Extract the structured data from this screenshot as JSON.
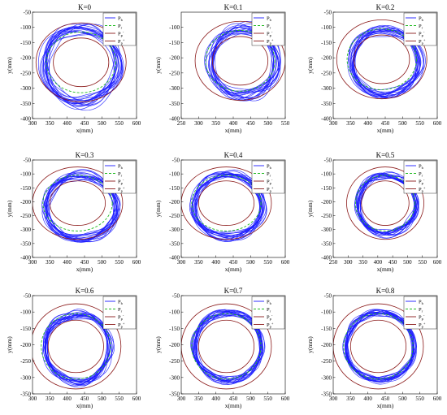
{
  "colors": {
    "measured": "#1a1aff",
    "reference": "#22bb22",
    "boundary": "#8b1a1a"
  },
  "chart_data": [
    {
      "type": "line",
      "title": "K=0",
      "xlabel": "x(mm)",
      "ylabel": "y(mm)",
      "xlim": [
        300,
        600
      ],
      "ylim": [
        -400,
        -50
      ],
      "xticks": [
        300,
        350,
        400,
        450,
        500,
        550,
        600
      ],
      "yticks": [
        -50,
        -100,
        -150,
        -200,
        -250,
        -300,
        -350,
        -400
      ],
      "legend": [
        "P_b",
        "P_r",
        "P_p^-",
        "P_p^+"
      ],
      "legend_loc": "top-right",
      "series": [
        {
          "name": "P_b",
          "shape": "ring",
          "center": [
            440,
            -225
          ],
          "radius_x": [
            85,
            120
          ],
          "radius_y": [
            100,
            140
          ]
        },
        {
          "name": "P_r",
          "shape": "circle",
          "center": [
            440,
            -215
          ],
          "radius": 100
        },
        {
          "name": "P_p^-",
          "shape": "circle",
          "center": [
            440,
            -215
          ],
          "radius": 80
        },
        {
          "name": "P_p^+",
          "shape": "circle",
          "center": [
            440,
            -215
          ],
          "radius": 130
        }
      ]
    },
    {
      "type": "line",
      "title": "K=0.1",
      "xlabel": "x(mm)",
      "ylabel": "y(mm)",
      "xlim": [
        250,
        550
      ],
      "ylim": [
        -400,
        -50
      ],
      "xticks": [
        250,
        300,
        350,
        400,
        450,
        500,
        550
      ],
      "yticks": [
        -100,
        -150,
        -200,
        -250,
        -300,
        -350,
        -400
      ],
      "legend": [
        "P_b",
        "P_r",
        "P_p^-",
        "P_p^+"
      ],
      "legend_loc": "top-right",
      "series": [
        {
          "name": "P_b",
          "shape": "ring",
          "center": [
            430,
            -215
          ],
          "radius_x": [
            80,
            110
          ],
          "radius_y": [
            85,
            130
          ]
        },
        {
          "name": "P_r",
          "shape": "circle",
          "center": [
            420,
            -210
          ],
          "radius": 100
        },
        {
          "name": "P_p^-",
          "shape": "circle",
          "center": [
            420,
            -210
          ],
          "radius": 80
        },
        {
          "name": "P_p^+",
          "shape": "circle",
          "center": [
            420,
            -210
          ],
          "radius": 130
        }
      ]
    },
    {
      "type": "line",
      "title": "K=0.2",
      "xlabel": "x(mm)",
      "ylabel": "y(mm)",
      "xlim": [
        300,
        600
      ],
      "ylim": [
        -400,
        -50
      ],
      "xticks": [
        300,
        350,
        400,
        450,
        500,
        550,
        600
      ],
      "yticks": [
        -50,
        -100,
        -150,
        -200,
        -250,
        -300,
        -350,
        -400
      ],
      "legend": [
        "P_b",
        "P_r",
        "P_p^-",
        "P_p^+"
      ],
      "legend_loc": "top-right",
      "series": [
        {
          "name": "P_b",
          "shape": "ring",
          "center": [
            450,
            -215
          ],
          "radius_x": [
            85,
            110
          ],
          "radius_y": [
            85,
            120
          ]
        },
        {
          "name": "P_r",
          "shape": "circle",
          "center": [
            440,
            -205
          ],
          "radius": 100
        },
        {
          "name": "P_p^-",
          "shape": "circle",
          "center": [
            440,
            -205
          ],
          "radius": 80
        },
        {
          "name": "P_p^+",
          "shape": "circle",
          "center": [
            440,
            -205
          ],
          "radius": 130
        }
      ]
    },
    {
      "type": "line",
      "title": "K=0.3",
      "xlabel": "x(mm)",
      "ylabel": "y(mm)",
      "xlim": [
        300,
        600
      ],
      "ylim": [
        -400,
        -50
      ],
      "xticks": [
        300,
        350,
        400,
        450,
        500,
        550,
        600
      ],
      "yticks": [
        -50,
        -100,
        -150,
        -200,
        -250,
        -300,
        -350,
        -400
      ],
      "legend": [
        "P_b",
        "P_r",
        "P_p^-",
        "P_p^+"
      ],
      "legend_loc": "top-right",
      "series": [
        {
          "name": "P_b",
          "shape": "ring",
          "center": [
            440,
            -220
          ],
          "radius_x": [
            88,
            110
          ],
          "radius_y": [
            95,
            130
          ]
        },
        {
          "name": "P_r",
          "shape": "circle",
          "center": [
            430,
            -205
          ],
          "radius": 100
        },
        {
          "name": "P_p^-",
          "shape": "circle",
          "center": [
            430,
            -205
          ],
          "radius": 80
        },
        {
          "name": "P_p^+",
          "shape": "circle",
          "center": [
            430,
            -205
          ],
          "radius": 130
        }
      ]
    },
    {
      "type": "line",
      "title": "K=0.4",
      "xlabel": "x(mm)",
      "ylabel": "y(mm)",
      "xlim": [
        300,
        600
      ],
      "ylim": [
        -400,
        -50
      ],
      "xticks": [
        300,
        350,
        400,
        450,
        500,
        550,
        600
      ],
      "yticks": [
        -50,
        -100,
        -150,
        -200,
        -250,
        -300,
        -350,
        -400
      ],
      "legend": [
        "P_b",
        "P_r",
        "P_p^-",
        "P_p^+"
      ],
      "legend_loc": "top-right",
      "series": [
        {
          "name": "P_b",
          "shape": "ring",
          "center": [
            435,
            -215
          ],
          "radius_x": [
            88,
            108
          ],
          "radius_y": [
            95,
            125
          ]
        },
        {
          "name": "P_r",
          "shape": "circle",
          "center": [
            430,
            -205
          ],
          "radius": 100
        },
        {
          "name": "P_p^-",
          "shape": "circle",
          "center": [
            430,
            -205
          ],
          "radius": 80
        },
        {
          "name": "P_p^+",
          "shape": "circle",
          "center": [
            430,
            -205
          ],
          "radius": 130
        }
      ]
    },
    {
      "type": "line",
      "title": "K=0.5",
      "xlabel": "x(mm)",
      "ylabel": "y(mm)",
      "xlim": [
        250,
        600
      ],
      "ylim": [
        -400,
        -50
      ],
      "xticks": [
        250,
        300,
        350,
        400,
        450,
        500,
        550,
        600
      ],
      "yticks": [
        -50,
        -100,
        -150,
        -200,
        -250,
        -300,
        -350,
        -400
      ],
      "legend": [
        "P_b",
        "P_r",
        "P_p^-",
        "P_p^+"
      ],
      "legend_loc": "top-right",
      "series": [
        {
          "name": "P_b",
          "shape": "ring",
          "center": [
            430,
            -210
          ],
          "radius_x": [
            88,
            105
          ],
          "radius_y": [
            95,
            115
          ]
        },
        {
          "name": "P_r",
          "shape": "circle",
          "center": [
            425,
            -205
          ],
          "radius": 100
        },
        {
          "name": "P_p^-",
          "shape": "circle",
          "center": [
            425,
            -205
          ],
          "radius": 80
        },
        {
          "name": "P_p^+",
          "shape": "circle",
          "center": [
            425,
            -205
          ],
          "radius": 130
        }
      ]
    },
    {
      "type": "line",
      "title": "K=0.6",
      "xlabel": "x(mm)",
      "ylabel": "y(mm)",
      "xlim": [
        300,
        600
      ],
      "ylim": [
        -350,
        -50
      ],
      "xticks": [
        300,
        350,
        400,
        450,
        500,
        550,
        600
      ],
      "yticks": [
        -50,
        -100,
        -150,
        -200,
        -250,
        -300,
        -350
      ],
      "legend": [
        "P_b",
        "P_r",
        "P_p^-",
        "P_p^+"
      ],
      "legend_loc": "top-right",
      "series": [
        {
          "name": "P_b",
          "shape": "ring",
          "center": [
            430,
            -210
          ],
          "radius_x": [
            85,
            100
          ],
          "radius_y": [
            92,
            115
          ]
        },
        {
          "name": "P_r",
          "shape": "circle",
          "center": [
            425,
            -205
          ],
          "radius": 100
        },
        {
          "name": "P_p^-",
          "shape": "circle",
          "center": [
            425,
            -205
          ],
          "radius": 80
        },
        {
          "name": "P_p^+",
          "shape": "circle",
          "center": [
            425,
            -205
          ],
          "radius": 130
        }
      ]
    },
    {
      "type": "line",
      "title": "K=0.7",
      "xlabel": "x(mm)",
      "ylabel": "y(mm)",
      "xlim": [
        300,
        600
      ],
      "ylim": [
        -350,
        -50
      ],
      "xticks": [
        300,
        350,
        400,
        450,
        500,
        550,
        600
      ],
      "yticks": [
        -50,
        -100,
        -150,
        -200,
        -250,
        -300,
        -350
      ],
      "legend": [
        "P_b",
        "P_r",
        "P_p^-",
        "P_p^+"
      ],
      "legend_loc": "top-right",
      "series": [
        {
          "name": "P_b",
          "shape": "ring",
          "center": [
            435,
            -205
          ],
          "radius_x": [
            90,
            102
          ],
          "radius_y": [
            95,
            110
          ]
        },
        {
          "name": "P_r",
          "shape": "circle",
          "center": [
            430,
            -205
          ],
          "radius": 100
        },
        {
          "name": "P_p^-",
          "shape": "circle",
          "center": [
            430,
            -205
          ],
          "radius": 80
        },
        {
          "name": "P_p^+",
          "shape": "circle",
          "center": [
            430,
            -205
          ],
          "radius": 130
        }
      ]
    },
    {
      "type": "line",
      "title": "K=0.8",
      "xlabel": "x(mm)",
      "ylabel": "y(mm)",
      "xlim": [
        300,
        600
      ],
      "ylim": [
        -350,
        -50
      ],
      "xticks": [
        300,
        350,
        400,
        450,
        500,
        550,
        600
      ],
      "yticks": [
        -50,
        -100,
        -150,
        -200,
        -250,
        -300,
        -350
      ],
      "legend": [
        "P_b",
        "P_r",
        "P_p^-",
        "P_p^+"
      ],
      "legend_loc": "top-right",
      "series": [
        {
          "name": "P_b",
          "shape": "ring",
          "center": [
            435,
            -205
          ],
          "radius_x": [
            92,
            102
          ],
          "radius_y": [
            97,
            108
          ]
        },
        {
          "name": "P_r",
          "shape": "circle",
          "center": [
            430,
            -205
          ],
          "radius": 100
        },
        {
          "name": "P_p^-",
          "shape": "circle",
          "center": [
            430,
            -205
          ],
          "radius": 80
        },
        {
          "name": "P_p^+",
          "shape": "circle",
          "center": [
            430,
            -205
          ],
          "radius": 130
        }
      ]
    }
  ]
}
